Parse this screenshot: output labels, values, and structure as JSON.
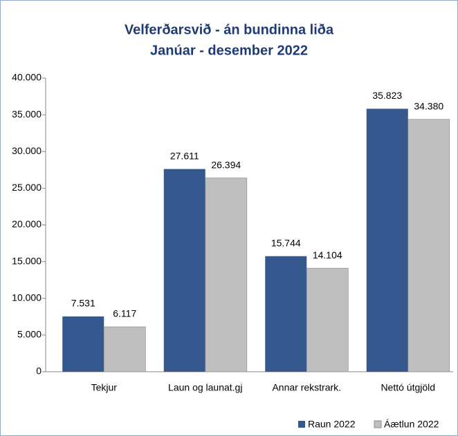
{
  "chart_data": {
    "type": "bar",
    "title": "Velferðarsvið - án bundinna liða",
    "subtitle": "Janúar - desember 2022",
    "categories": [
      "Tekjur",
      "Laun og launat.gj",
      "Annar rekstrark.",
      "Nettó útgjöld"
    ],
    "series": [
      {
        "name": "Raun 2022",
        "color": "#35598f",
        "values": [
          7531,
          27611,
          15744,
          35823
        ],
        "value_labels": [
          "7.531",
          "27.611",
          "15.744",
          "35.823"
        ]
      },
      {
        "name": "Áætlun 2022",
        "color": "#bfbfbf",
        "values": [
          6117,
          26394,
          14104,
          34380
        ],
        "value_labels": [
          "6.117",
          "26.394",
          "14.104",
          "34.380"
        ]
      }
    ],
    "ylim": [
      0,
      40000
    ],
    "yticks": [
      0,
      {
        "value": 5000,
        "label": "5.000"
      },
      {
        "value": 10000,
        "label": "10.000"
      },
      {
        "value": 15000,
        "label": "15.000"
      },
      {
        "value": 20000,
        "label": "20.000"
      },
      {
        "value": 25000,
        "label": "25.000"
      },
      {
        "value": 30000,
        "label": "30.000"
      },
      {
        "value": 35000,
        "label": "35.000"
      },
      {
        "value": 40000,
        "label": "40.000"
      }
    ],
    "grid": false,
    "legend": "bottom-right"
  }
}
